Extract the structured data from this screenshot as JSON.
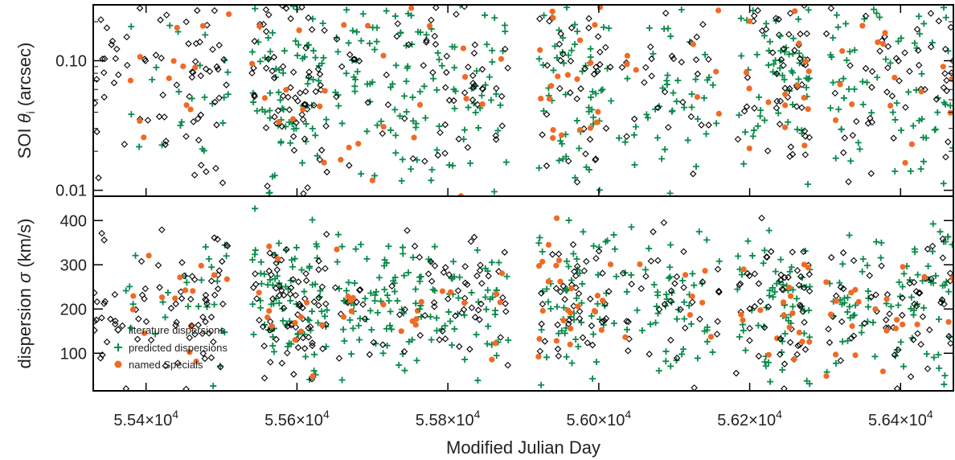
{
  "chart_data": {
    "type": "scatter",
    "xlabel": "Modified Julian Day",
    "x_tick_labels": [
      "5.54×10",
      "5.56×10",
      "5.58×10",
      "5.60×10",
      "5.62×10",
      "5.64×10"
    ],
    "x_tick_exponent": "4",
    "x_ticks": [
      55400,
      55600,
      55800,
      56000,
      56200,
      56400
    ],
    "xlim": [
      55330,
      56470
    ],
    "panels": [
      {
        "name": "top",
        "ylabel_parts": [
          "SOI ",
          "θ",
          "i",
          " (arcsec)"
        ],
        "yscale": "log",
        "ylim": [
          0.009,
          0.27
        ],
        "y_ticks": [
          0.01,
          0.1
        ],
        "y_tick_labels": [
          "0.01",
          "0.10"
        ],
        "seed": 7,
        "center": 0.075,
        "spread": 0.55
      },
      {
        "name": "bottom",
        "ylabel_parts": [
          "dispersion  ",
          "σ",
          "",
          " (km/s)"
        ],
        "yscale": "linear",
        "ylim": [
          15,
          455
        ],
        "y_ticks": [
          100,
          200,
          300,
          400
        ],
        "y_tick_labels": [
          "100",
          "200",
          "300",
          "400"
        ],
        "seed": 11,
        "center": 210,
        "spread": 95
      }
    ],
    "series": [
      {
        "name": "literature dispersions",
        "marker": "diamond",
        "color": "#000000"
      },
      {
        "name": "predicted dispersions",
        "marker": "plus",
        "color": "#0a8a4a"
      },
      {
        "name": "named Specials",
        "marker": "circle",
        "color": "#f06a24"
      }
    ],
    "legend": {
      "placement": "bottom-left",
      "panel": "bottom"
    },
    "clusters": [
      {
        "x0": 55330,
        "x1": 55370,
        "n": [
          18,
          0,
          0
        ]
      },
      {
        "x0": 55370,
        "x1": 55420,
        "n": [
          12,
          6,
          4
        ]
      },
      {
        "x0": 55420,
        "x1": 55460,
        "n": [
          14,
          6,
          6
        ]
      },
      {
        "x0": 55460,
        "x1": 55510,
        "n": [
          30,
          14,
          5
        ]
      },
      {
        "x0": 55540,
        "x1": 55600,
        "n": [
          40,
          50,
          8
        ]
      },
      {
        "x0": 55600,
        "x1": 55640,
        "n": [
          30,
          30,
          5
        ]
      },
      {
        "x0": 55650,
        "x1": 55700,
        "n": [
          10,
          30,
          6
        ]
      },
      {
        "x0": 55700,
        "x1": 55760,
        "n": [
          8,
          40,
          6
        ]
      },
      {
        "x0": 55760,
        "x1": 55820,
        "n": [
          20,
          30,
          3
        ]
      },
      {
        "x0": 55820,
        "x1": 55880,
        "n": [
          25,
          30,
          6
        ]
      },
      {
        "x0": 55920,
        "x1": 55960,
        "n": [
          15,
          25,
          14
        ]
      },
      {
        "x0": 55960,
        "x1": 56010,
        "n": [
          25,
          30,
          10
        ]
      },
      {
        "x0": 56010,
        "x1": 56060,
        "n": [
          8,
          12,
          3
        ]
      },
      {
        "x0": 56060,
        "x1": 56110,
        "n": [
          15,
          25,
          0
        ]
      },
      {
        "x0": 56110,
        "x1": 56160,
        "n": [
          12,
          20,
          6
        ]
      },
      {
        "x0": 56180,
        "x1": 56240,
        "n": [
          20,
          30,
          6
        ]
      },
      {
        "x0": 56240,
        "x1": 56280,
        "n": [
          30,
          35,
          12
        ]
      },
      {
        "x0": 56300,
        "x1": 56360,
        "n": [
          15,
          30,
          10
        ]
      },
      {
        "x0": 56360,
        "x1": 56420,
        "n": [
          20,
          25,
          8
        ]
      },
      {
        "x0": 56420,
        "x1": 56470,
        "n": [
          22,
          30,
          4
        ]
      }
    ]
  }
}
